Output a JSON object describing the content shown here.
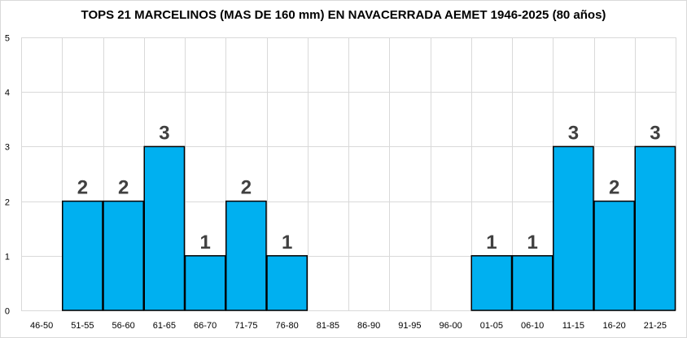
{
  "chart_data": {
    "type": "bar",
    "title": "TOPS 21 MARCELINOS (MAS DE 160 mm) EN NAVACERRADA AEMET 1946-2025 (80 años)",
    "xlabel": "",
    "ylabel": "",
    "categories": [
      "46-50",
      "51-55",
      "56-60",
      "61-65",
      "66-70",
      "71-75",
      "76-80",
      "81-85",
      "86-90",
      "91-95",
      "96-00",
      "01-05",
      "06-10",
      "11-15",
      "16-20",
      "21-25"
    ],
    "values": [
      0,
      2,
      2,
      3,
      1,
      2,
      1,
      0,
      0,
      0,
      0,
      1,
      1,
      3,
      2,
      3
    ],
    "ylim": [
      0,
      5
    ],
    "yticks": [
      "0",
      "1",
      "2",
      "3",
      "4",
      "5"
    ],
    "grid": true,
    "legend": "none",
    "colors": {
      "bar": "#00b0f0",
      "bar_edge": "#000000",
      "grid": "#d9d9d9",
      "data_label": "#404040"
    }
  }
}
